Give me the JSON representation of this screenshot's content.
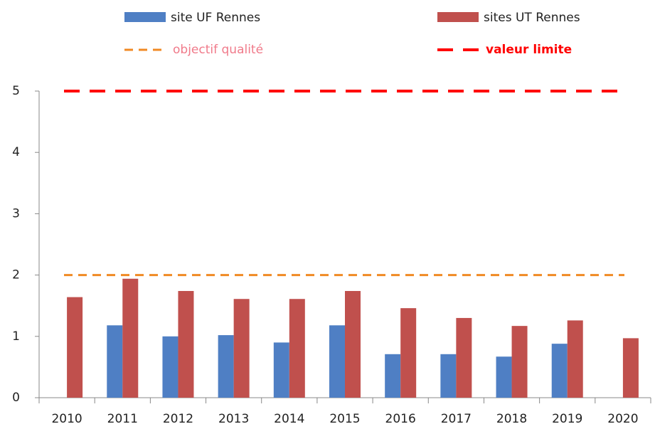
{
  "chart_data": {
    "type": "bar",
    "categories": [
      "2010",
      "2011",
      "2012",
      "2013",
      "2014",
      "2015",
      "2016",
      "2017",
      "2018",
      "2019",
      "2020"
    ],
    "series": [
      {
        "name": "site UF Rennes",
        "color": "#4f7fc4",
        "values": [
          null,
          1.18,
          1.0,
          1.02,
          0.9,
          1.18,
          0.71,
          0.71,
          0.67,
          0.88,
          null
        ]
      },
      {
        "name": "sites UT Rennes",
        "color": "#c0504d",
        "values": [
          1.64,
          1.94,
          1.74,
          1.61,
          1.61,
          1.74,
          1.46,
          1.3,
          1.17,
          1.26,
          0.97
        ]
      }
    ],
    "reference_lines": [
      {
        "name": "objectif qualité",
        "value": 2,
        "color": "#f08a24",
        "label_color": "#f07a8a"
      },
      {
        "name": "valeur limite",
        "value": 5,
        "color": "#ff0000",
        "label_color": "#ff0000"
      }
    ],
    "ylim": [
      0,
      5
    ],
    "yticks": [
      0,
      1,
      2,
      3,
      4,
      5
    ],
    "grid": false
  }
}
